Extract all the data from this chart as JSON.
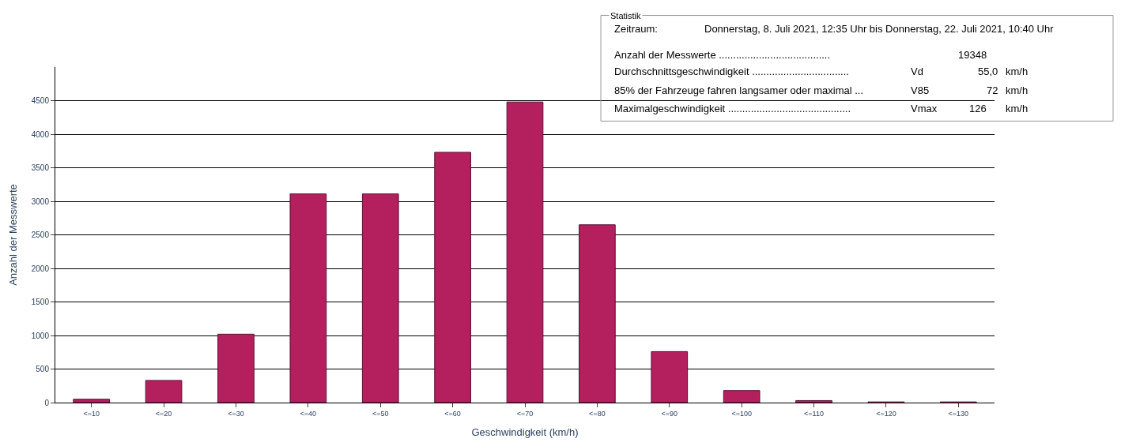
{
  "chart_data": {
    "type": "bar",
    "xlabel": "Geschwindigkeit (km/h)",
    "ylabel": "Anzahl der Messwerte",
    "categories": [
      "<=10",
      "<=20",
      "<=30",
      "<=40",
      "<=50",
      "<=60",
      "<=70",
      "<=80",
      "<=90",
      "<=100",
      "<=110",
      "<=120",
      "<=130"
    ],
    "values": [
      50,
      330,
      1020,
      3110,
      3110,
      3730,
      4480,
      2650,
      760,
      180,
      30,
      10,
      10
    ],
    "color": "#b41f5e",
    "ylim": [
      0,
      5000
    ],
    "yticks": [
      0,
      500,
      1000,
      1500,
      2000,
      2500,
      3000,
      3500,
      4000,
      4500
    ],
    "grid": "y",
    "legend": false,
    "annotations": [
      "Statistik",
      "Zeitraum:",
      "Donnerstag, 8. Juli 2021, 12:35 Uhr bis Donnerstag, 22. Juli 2021, 10:40 Uhr",
      "Anzahl der Messwerte .......................................",
      "19348",
      "Durchschnittsgeschwindigkeit ..................................",
      "Vd",
      "55,0",
      "km/h",
      "85% der Fahrzeuge fahren langsamer oder maximal ...",
      "V85",
      "72",
      "km/h",
      "Maximalgeschwindigkeit ...........................................",
      "Vmax",
      "126",
      "km/h"
    ]
  }
}
